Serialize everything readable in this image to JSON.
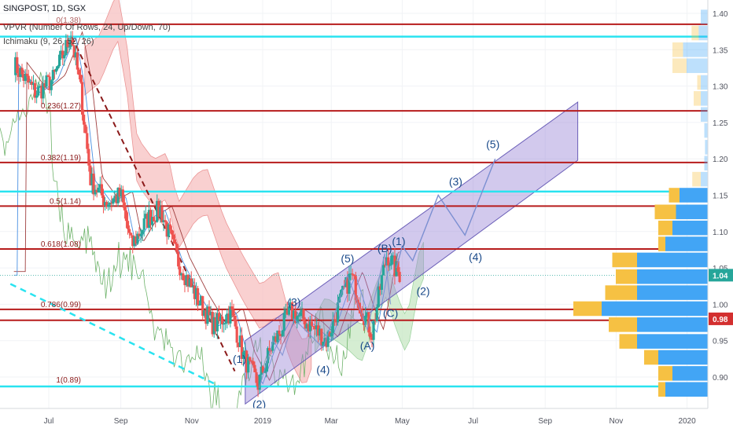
{
  "header": {
    "symbol_line": "SINGPOST, 1D, SGX",
    "indicator_vpvr": "VPVR (Number Of Rows, 24, Up/Down, 70)",
    "indicator_ichimoku": "Ichimaku (9, 26, 52, 26)"
  },
  "chart_data": {
    "type": "candlestick",
    "y_axis": {
      "ticks": [
        "1.40",
        "1.35",
        "1.30",
        "1.25",
        "1.20",
        "1.15",
        "1.10",
        "1.05",
        "1.00",
        "0.95",
        "0.90"
      ],
      "range": [
        0.865,
        1.405
      ]
    },
    "x_axis": {
      "ticks": [
        "Jul",
        "Sep",
        "Nov",
        "2019",
        "Mar",
        "May",
        "Jul",
        "Sep",
        "Nov",
        "2020"
      ]
    },
    "price_labels": [
      {
        "value": "1.04",
        "color": "#26a69a"
      },
      {
        "value": "0.98",
        "color": "#d32f2f"
      }
    ],
    "fib_levels": [
      {
        "label": "0.236(1.27)",
        "price": 1.266
      },
      {
        "label": "0.382(1.19)",
        "price": 1.195
      },
      {
        "label": "0.5(1.14)",
        "price": 1.135
      },
      {
        "label": "0.618(1.08)",
        "price": 1.076
      },
      {
        "label": "0.786(0.99)",
        "price": 0.993
      },
      {
        "label": "1(0.89)",
        "price": 0.889
      }
    ],
    "top_fib_label": "0(1.38)",
    "horizontal_red_lines": [
      1.385,
      1.266,
      1.195,
      1.135,
      1.076,
      0.993,
      0.978
    ],
    "horizontal_cyan_lines": [
      1.368,
      1.155,
      0.887
    ],
    "wave_labels": [
      {
        "text": "(1)",
        "date": "2018-12-12",
        "price": 0.925
      },
      {
        "text": "(2)",
        "date": "2018-12-29",
        "price": 0.863
      },
      {
        "text": "(3)",
        "date": "2019-01-28",
        "price": 1.003
      },
      {
        "text": "(4)",
        "date": "2019-02-22",
        "price": 0.91
      },
      {
        "text": "(5)",
        "date": "2019-03-15",
        "price": 1.063
      },
      {
        "text": "(A)",
        "date": "2019-04-01",
        "price": 0.943
      },
      {
        "text": "(B)",
        "date": "2019-04-16",
        "price": 1.077
      },
      {
        "text": "(C)",
        "date": "2019-04-21",
        "price": 0.988
      },
      {
        "text": "(1)",
        "date": "2019-04-28",
        "price": 1.087
      },
      {
        "text": "(2)",
        "date": "2019-05-19",
        "price": 1.018
      },
      {
        "text": "(3)",
        "date": "2019-06-16",
        "price": 1.169
      },
      {
        "text": "(4)",
        "date": "2019-07-03",
        "price": 1.065
      },
      {
        "text": "(5)",
        "date": "2019-07-18",
        "price": 1.22
      }
    ],
    "projection_path": [
      {
        "date": "2019-04-26",
        "price": 1.05
      },
      {
        "date": "2019-05-01",
        "price": 1.08
      },
      {
        "date": "2019-05-10",
        "price": 1.06
      },
      {
        "date": "2019-06-01",
        "price": 1.15
      },
      {
        "date": "2019-06-24",
        "price": 1.095
      },
      {
        "date": "2019-07-20",
        "price": 1.2
      }
    ],
    "channel": {
      "upper": [
        {
          "date": "2018-12-17",
          "price": 0.95
        },
        {
          "date": "2019-09-29",
          "price": 1.278
        }
      ],
      "lower": [
        {
          "date": "2018-12-17",
          "price": 0.863
        },
        {
          "date": "2019-09-29",
          "price": 1.198
        }
      ]
    },
    "trendline_dashed_red": [
      {
        "date": "2018-07-21",
        "price": 1.367
      },
      {
        "date": "2018-12-08",
        "price": 0.908
      }
    ],
    "trendline_dashed_cyan": [
      {
        "date": "2018-05-29",
        "price": 1.028
      },
      {
        "date": "2018-11-24",
        "price": 0.888
      }
    ],
    "volume_profile": [
      {
        "price": 1.395,
        "up": 0.0,
        "down": 0.01
      },
      {
        "price": 1.373,
        "up": 0.01,
        "down": 0.013
      },
      {
        "price": 1.35,
        "up": 0.015,
        "down": 0.035
      },
      {
        "price": 1.328,
        "up": 0.02,
        "down": 0.03
      },
      {
        "price": 1.305,
        "up": 0.005,
        "down": 0.01
      },
      {
        "price": 1.283,
        "up": 0.01,
        "down": 0.01
      },
      {
        "price": 1.261,
        "up": 0.0,
        "down": 0.01
      },
      {
        "price": 1.239,
        "up": 0.0,
        "down": 0.005
      },
      {
        "price": 1.216,
        "up": 0.0,
        "down": 0.004
      },
      {
        "price": 1.194,
        "up": 0.0,
        "down": 0.005
      },
      {
        "price": 1.172,
        "up": 0.012,
        "down": 0.01
      },
      {
        "price": 1.15,
        "up": 0.015,
        "down": 0.04
      },
      {
        "price": 1.127,
        "up": 0.03,
        "down": 0.045
      },
      {
        "price": 1.105,
        "up": 0.02,
        "down": 0.05
      },
      {
        "price": 1.083,
        "up": 0.01,
        "down": 0.06
      },
      {
        "price": 1.061,
        "up": 0.035,
        "down": 0.1
      },
      {
        "price": 1.038,
        "up": 0.03,
        "down": 0.1
      },
      {
        "price": 1.016,
        "up": 0.045,
        "down": 0.1
      },
      {
        "price": 0.994,
        "up": 0.04,
        "down": 0.15
      },
      {
        "price": 0.972,
        "up": 0.04,
        "down": 0.1
      },
      {
        "price": 0.949,
        "up": 0.025,
        "down": 0.1
      },
      {
        "price": 0.927,
        "up": 0.02,
        "down": 0.07
      },
      {
        "price": 0.905,
        "up": 0.02,
        "down": 0.05
      },
      {
        "price": 0.883,
        "up": 0.01,
        "down": 0.06
      }
    ],
    "colors": {
      "up": "#26a69a",
      "down": "#ef5350",
      "fib_line": "#b71c1c",
      "cyan_line": "#29e3f0",
      "channel_fill": "#9c88d8",
      "cloud_red": "#f7c1c1",
      "cloud_green": "#c7e8c4",
      "projection": "#7b8fd1",
      "wave_label": "#1a4a8a",
      "vp_up": "#f6c143",
      "vp_down": "#42a5f5"
    }
  }
}
